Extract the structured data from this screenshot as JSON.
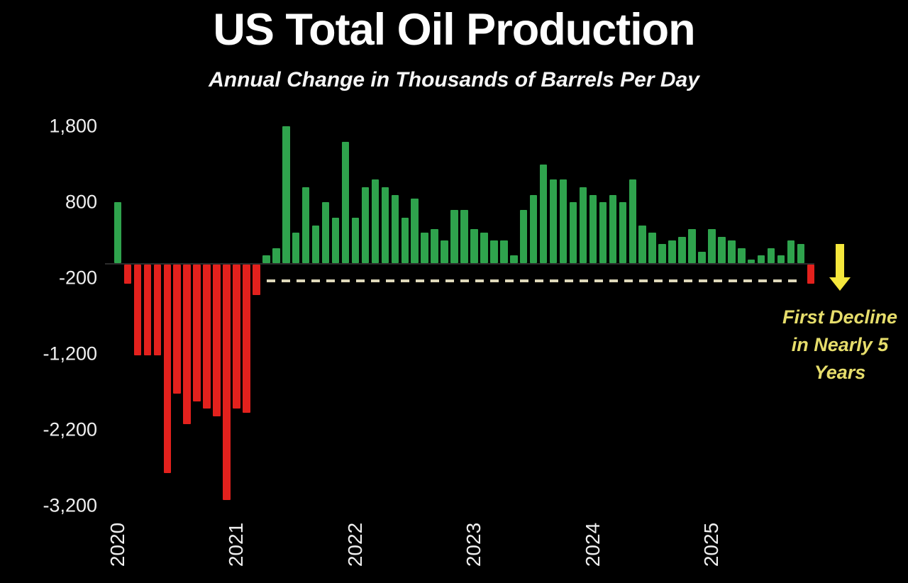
{
  "title": "US Total Oil Production",
  "subtitle": "Annual Change in Thousands of Barrels Per Day",
  "annotation": {
    "lines": [
      "First Decline",
      "in Nearly 5",
      "Years"
    ],
    "color": "#e6dd6b"
  },
  "colors": {
    "background": "#000000",
    "positive_bar": "#2fa34d",
    "negative_bar": "#e3211d",
    "dashed_line": "#ded8ba",
    "arrow": "#f5e73c",
    "text": "#ffffff",
    "annotation_text": "#e6dd6b"
  },
  "chart_data": {
    "type": "bar",
    "title": "US Total Oil Production",
    "subtitle": "Annual Change in Thousands of Barrels Per Day",
    "unit": "thousand barrels per day, annual change",
    "grid": false,
    "legend": false,
    "ylim": [
      -3400,
      2000
    ],
    "y_ticks": [
      1800,
      800,
      -200,
      -1200,
      -2200,
      -3200
    ],
    "y_tick_labels": [
      "1,800",
      "800",
      "-200",
      "-1,200",
      "-2,200",
      "-3,200"
    ],
    "x_tick_labels": [
      "2020",
      "2021",
      "2022",
      "2023",
      "2024",
      "2025"
    ],
    "reference_line": {
      "value": -200,
      "style": "dashed"
    },
    "x": [
      "2020-01",
      "2020-02",
      "2020-03",
      "2020-04",
      "2020-05",
      "2020-06",
      "2020-07",
      "2020-08",
      "2020-09",
      "2020-10",
      "2020-11",
      "2020-12",
      "2021-01",
      "2021-02",
      "2021-03",
      "2021-04",
      "2021-05",
      "2021-06",
      "2021-07",
      "2021-08",
      "2021-09",
      "2021-10",
      "2021-11",
      "2021-12",
      "2022-01",
      "2022-02",
      "2022-03",
      "2022-04",
      "2022-05",
      "2022-06",
      "2022-07",
      "2022-08",
      "2022-09",
      "2022-10",
      "2022-11",
      "2022-12",
      "2023-01",
      "2023-02",
      "2023-03",
      "2023-04",
      "2023-05",
      "2023-06",
      "2023-07",
      "2023-08",
      "2023-09",
      "2023-10",
      "2023-11",
      "2023-12",
      "2024-01",
      "2024-02",
      "2024-03",
      "2024-04",
      "2024-05",
      "2024-06",
      "2024-07",
      "2024-08",
      "2024-09",
      "2024-10",
      "2024-11",
      "2024-12",
      "2025-01",
      "2025-02",
      "2025-03",
      "2025-04",
      "2025-05",
      "2025-06",
      "2025-07",
      "2025-08",
      "2025-09",
      "2025-10",
      "2025-11"
    ],
    "values": [
      800,
      -250,
      -1200,
      -1200,
      -1200,
      -2750,
      -1700,
      -2100,
      -1800,
      -1900,
      -2000,
      -3100,
      -1900,
      -1950,
      -400,
      100,
      200,
      1800,
      400,
      1000,
      500,
      800,
      600,
      1600,
      600,
      1000,
      1100,
      1000,
      900,
      600,
      850,
      400,
      450,
      300,
      700,
      700,
      450,
      400,
      300,
      300,
      100,
      700,
      900,
      1300,
      1100,
      1100,
      800,
      1000,
      900,
      800,
      900,
      800,
      1100,
      500,
      400,
      250,
      300,
      350,
      450,
      150,
      450,
      350,
      300,
      200,
      50,
      100,
      200,
      100,
      300,
      250,
      -250
    ]
  }
}
